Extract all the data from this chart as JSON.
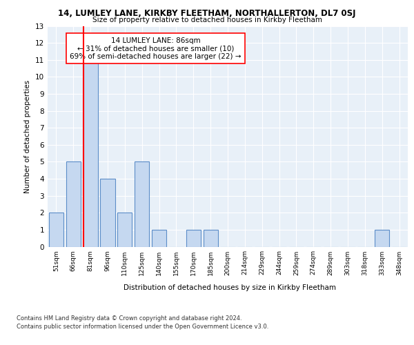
{
  "title1": "14, LUMLEY LANE, KIRKBY FLEETHAM, NORTHALLERTON, DL7 0SJ",
  "title2": "Size of property relative to detached houses in Kirkby Fleetham",
  "xlabel": "Distribution of detached houses by size in Kirkby Fleetham",
  "ylabel": "Number of detached properties",
  "categories": [
    "51sqm",
    "66sqm",
    "81sqm",
    "96sqm",
    "110sqm",
    "125sqm",
    "140sqm",
    "155sqm",
    "170sqm",
    "185sqm",
    "200sqm",
    "214sqm",
    "229sqm",
    "244sqm",
    "259sqm",
    "274sqm",
    "289sqm",
    "303sqm",
    "318sqm",
    "333sqm",
    "348sqm"
  ],
  "values": [
    2,
    5,
    11,
    4,
    2,
    5,
    1,
    0,
    1,
    1,
    0,
    0,
    0,
    0,
    0,
    0,
    0,
    0,
    0,
    1,
    0
  ],
  "bar_color": "#c5d8f0",
  "bar_edge_color": "#5b8dc8",
  "red_line_index": 2,
  "annotation_title": "14 LUMLEY LANE: 86sqm",
  "annotation_line1": "← 31% of detached houses are smaller (10)",
  "annotation_line2": "69% of semi-detached houses are larger (22) →",
  "ylim": [
    0,
    13
  ],
  "yticks": [
    0,
    1,
    2,
    3,
    4,
    5,
    6,
    7,
    8,
    9,
    10,
    11,
    12,
    13
  ],
  "footer1": "Contains HM Land Registry data © Crown copyright and database right 2024.",
  "footer2": "Contains public sector information licensed under the Open Government Licence v3.0.",
  "bg_color": "#e8f0f8",
  "grid_color": "#ffffff"
}
